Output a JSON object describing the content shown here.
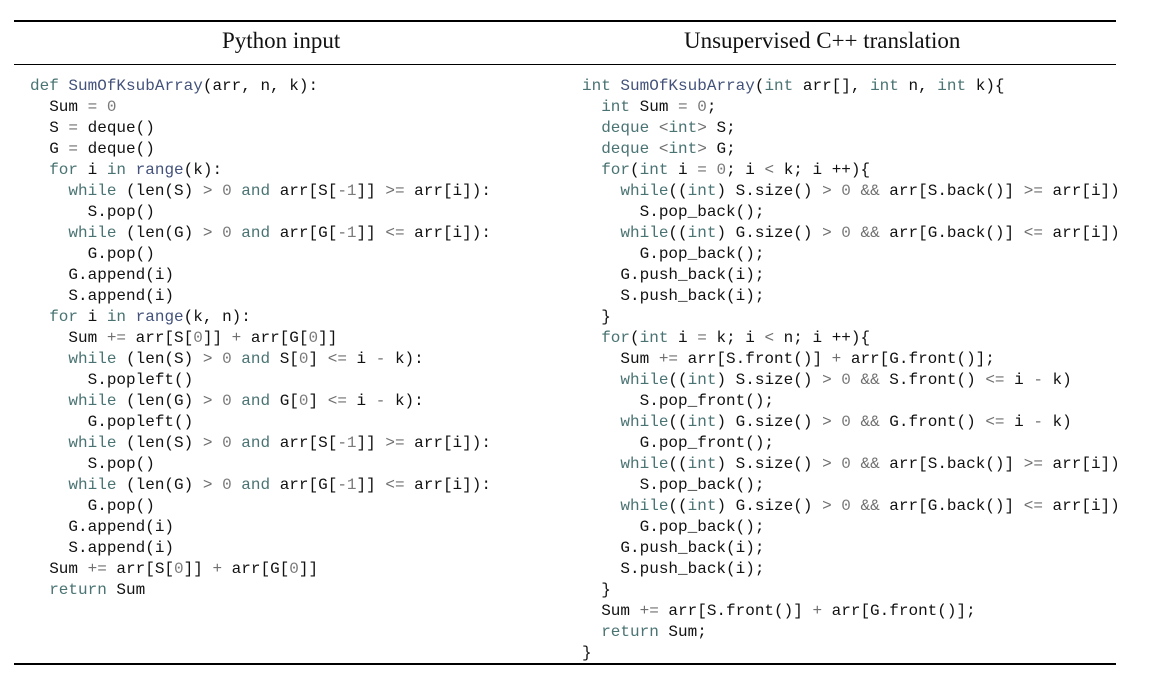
{
  "headers": {
    "left": "Python input",
    "right": "Unsupervised C++ translation"
  },
  "python_lines": [
    "def SumOfKsubArray(arr, n, k):",
    "  Sum = 0",
    "  S = deque()",
    "  G = deque()",
    "  for i in range(k):",
    "    while (len(S) > 0 and arr[S[-1]] >= arr[i]):",
    "      S.pop()",
    "    while (len(G) > 0 and arr[G[-1]] <= arr[i]):",
    "      G.pop()",
    "    G.append(i)",
    "    S.append(i)",
    "  for i in range(k, n):",
    "    Sum += arr[S[0]] + arr[G[0]]",
    "    while (len(S) > 0 and S[0] <= i - k):",
    "      S.popleft()",
    "    while (len(G) > 0 and G[0] <= i - k):",
    "      G.popleft()",
    "    while (len(S) > 0 and arr[S[-1]] >= arr[i]):",
    "      S.pop()",
    "    while (len(G) > 0 and arr[G[-1]] <= arr[i]):",
    "      G.pop()",
    "    G.append(i)",
    "    S.append(i)",
    "  Sum += arr[S[0]] + arr[G[0]]",
    "  return Sum"
  ],
  "cpp_lines": [
    "int SumOfKsubArray(int arr[], int n, int k){",
    "  int Sum = 0;",
    "  deque <int> S;",
    "  deque <int> G;",
    "  for(int i = 0; i < k; i ++){",
    "    while((int) S.size() > 0 && arr[S.back()] >= arr[i])",
    "      S.pop_back();",
    "    while((int) G.size() > 0 && arr[G.back()] <= arr[i])",
    "      G.pop_back();",
    "    G.push_back(i);",
    "    S.push_back(i);",
    "  }",
    "  for(int i = k; i < n; i ++){",
    "    Sum += arr[S.front()] + arr[G.front()];",
    "    while((int) S.size() > 0 && S.front() <= i - k)",
    "      S.pop_front();",
    "    while((int) G.size() > 0 && G.front() <= i - k)",
    "      G.pop_front();",
    "    while((int) S.size() > 0 && arr[S.back()] >= arr[i])",
    "      S.pop_back();",
    "    while((int) G.size() > 0 && arr[G.back()] <= arr[i])",
    "      G.pop_back();",
    "    G.push_back(i);",
    "    S.push_back(i);",
    "  }",
    "  Sum += arr[S.front()] + arr[G.front()];",
    "  return Sum;",
    "}"
  ]
}
